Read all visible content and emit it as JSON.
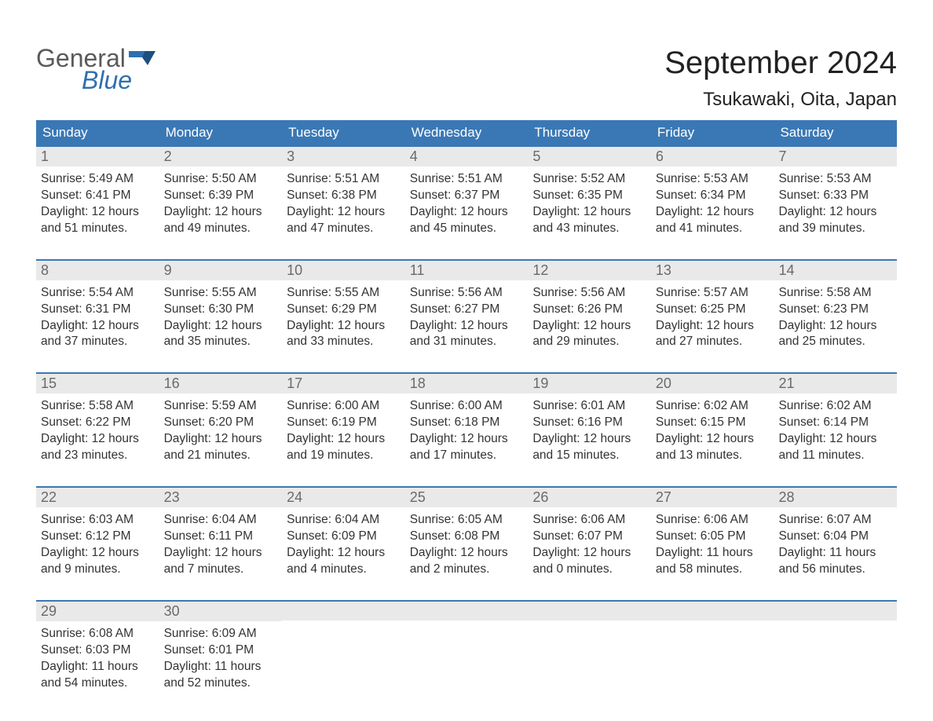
{
  "logo": {
    "line1": "General",
    "line2": "Blue"
  },
  "title": "September 2024",
  "location": "Tsukawaki, Oita, Japan",
  "weekdays": [
    "Sunday",
    "Monday",
    "Tuesday",
    "Wednesday",
    "Thursday",
    "Friday",
    "Saturday"
  ],
  "colors": {
    "header_bg": "#3a78b5",
    "header_text": "#ffffff",
    "daynum_bg": "#e9e9e9",
    "daynum_border": "#3a78b5",
    "daynum_text": "#6a6a6a",
    "body_text": "#333333",
    "logo_gray": "#5a5a5a",
    "logo_blue": "#2f6fb0",
    "background": "#ffffff"
  },
  "typography": {
    "title_fontsize": 40,
    "location_fontsize": 24,
    "weekday_fontsize": 17,
    "daynum_fontsize": 18,
    "body_fontsize": 15.5,
    "logo_fontsize": 32,
    "font_family": "Arial"
  },
  "weeks": [
    [
      {
        "n": "1",
        "sunrise": "5:49 AM",
        "sunset": "6:41 PM",
        "dl1": "12 hours",
        "dl2": "and 51 minutes."
      },
      {
        "n": "2",
        "sunrise": "5:50 AM",
        "sunset": "6:39 PM",
        "dl1": "12 hours",
        "dl2": "and 49 minutes."
      },
      {
        "n": "3",
        "sunrise": "5:51 AM",
        "sunset": "6:38 PM",
        "dl1": "12 hours",
        "dl2": "and 47 minutes."
      },
      {
        "n": "4",
        "sunrise": "5:51 AM",
        "sunset": "6:37 PM",
        "dl1": "12 hours",
        "dl2": "and 45 minutes."
      },
      {
        "n": "5",
        "sunrise": "5:52 AM",
        "sunset": "6:35 PM",
        "dl1": "12 hours",
        "dl2": "and 43 minutes."
      },
      {
        "n": "6",
        "sunrise": "5:53 AM",
        "sunset": "6:34 PM",
        "dl1": "12 hours",
        "dl2": "and 41 minutes."
      },
      {
        "n": "7",
        "sunrise": "5:53 AM",
        "sunset": "6:33 PM",
        "dl1": "12 hours",
        "dl2": "and 39 minutes."
      }
    ],
    [
      {
        "n": "8",
        "sunrise": "5:54 AM",
        "sunset": "6:31 PM",
        "dl1": "12 hours",
        "dl2": "and 37 minutes."
      },
      {
        "n": "9",
        "sunrise": "5:55 AM",
        "sunset": "6:30 PM",
        "dl1": "12 hours",
        "dl2": "and 35 minutes."
      },
      {
        "n": "10",
        "sunrise": "5:55 AM",
        "sunset": "6:29 PM",
        "dl1": "12 hours",
        "dl2": "and 33 minutes."
      },
      {
        "n": "11",
        "sunrise": "5:56 AM",
        "sunset": "6:27 PM",
        "dl1": "12 hours",
        "dl2": "and 31 minutes."
      },
      {
        "n": "12",
        "sunrise": "5:56 AM",
        "sunset": "6:26 PM",
        "dl1": "12 hours",
        "dl2": "and 29 minutes."
      },
      {
        "n": "13",
        "sunrise": "5:57 AM",
        "sunset": "6:25 PM",
        "dl1": "12 hours",
        "dl2": "and 27 minutes."
      },
      {
        "n": "14",
        "sunrise": "5:58 AM",
        "sunset": "6:23 PM",
        "dl1": "12 hours",
        "dl2": "and 25 minutes."
      }
    ],
    [
      {
        "n": "15",
        "sunrise": "5:58 AM",
        "sunset": "6:22 PM",
        "dl1": "12 hours",
        "dl2": "and 23 minutes."
      },
      {
        "n": "16",
        "sunrise": "5:59 AM",
        "sunset": "6:20 PM",
        "dl1": "12 hours",
        "dl2": "and 21 minutes."
      },
      {
        "n": "17",
        "sunrise": "6:00 AM",
        "sunset": "6:19 PM",
        "dl1": "12 hours",
        "dl2": "and 19 minutes."
      },
      {
        "n": "18",
        "sunrise": "6:00 AM",
        "sunset": "6:18 PM",
        "dl1": "12 hours",
        "dl2": "and 17 minutes."
      },
      {
        "n": "19",
        "sunrise": "6:01 AM",
        "sunset": "6:16 PM",
        "dl1": "12 hours",
        "dl2": "and 15 minutes."
      },
      {
        "n": "20",
        "sunrise": "6:02 AM",
        "sunset": "6:15 PM",
        "dl1": "12 hours",
        "dl2": "and 13 minutes."
      },
      {
        "n": "21",
        "sunrise": "6:02 AM",
        "sunset": "6:14 PM",
        "dl1": "12 hours",
        "dl2": "and 11 minutes."
      }
    ],
    [
      {
        "n": "22",
        "sunrise": "6:03 AM",
        "sunset": "6:12 PM",
        "dl1": "12 hours",
        "dl2": "and 9 minutes."
      },
      {
        "n": "23",
        "sunrise": "6:04 AM",
        "sunset": "6:11 PM",
        "dl1": "12 hours",
        "dl2": "and 7 minutes."
      },
      {
        "n": "24",
        "sunrise": "6:04 AM",
        "sunset": "6:09 PM",
        "dl1": "12 hours",
        "dl2": "and 4 minutes."
      },
      {
        "n": "25",
        "sunrise": "6:05 AM",
        "sunset": "6:08 PM",
        "dl1": "12 hours",
        "dl2": "and 2 minutes."
      },
      {
        "n": "26",
        "sunrise": "6:06 AM",
        "sunset": "6:07 PM",
        "dl1": "12 hours",
        "dl2": "and 0 minutes."
      },
      {
        "n": "27",
        "sunrise": "6:06 AM",
        "sunset": "6:05 PM",
        "dl1": "11 hours",
        "dl2": "and 58 minutes."
      },
      {
        "n": "28",
        "sunrise": "6:07 AM",
        "sunset": "6:04 PM",
        "dl1": "11 hours",
        "dl2": "and 56 minutes."
      }
    ],
    [
      {
        "n": "29",
        "sunrise": "6:08 AM",
        "sunset": "6:03 PM",
        "dl1": "11 hours",
        "dl2": "and 54 minutes."
      },
      {
        "n": "30",
        "sunrise": "6:09 AM",
        "sunset": "6:01 PM",
        "dl1": "11 hours",
        "dl2": "and 52 minutes."
      },
      {
        "empty": true
      },
      {
        "empty": true
      },
      {
        "empty": true
      },
      {
        "empty": true
      },
      {
        "empty": true
      }
    ]
  ],
  "labels": {
    "sunrise": "Sunrise: ",
    "sunset": "Sunset: ",
    "daylight": "Daylight: "
  }
}
